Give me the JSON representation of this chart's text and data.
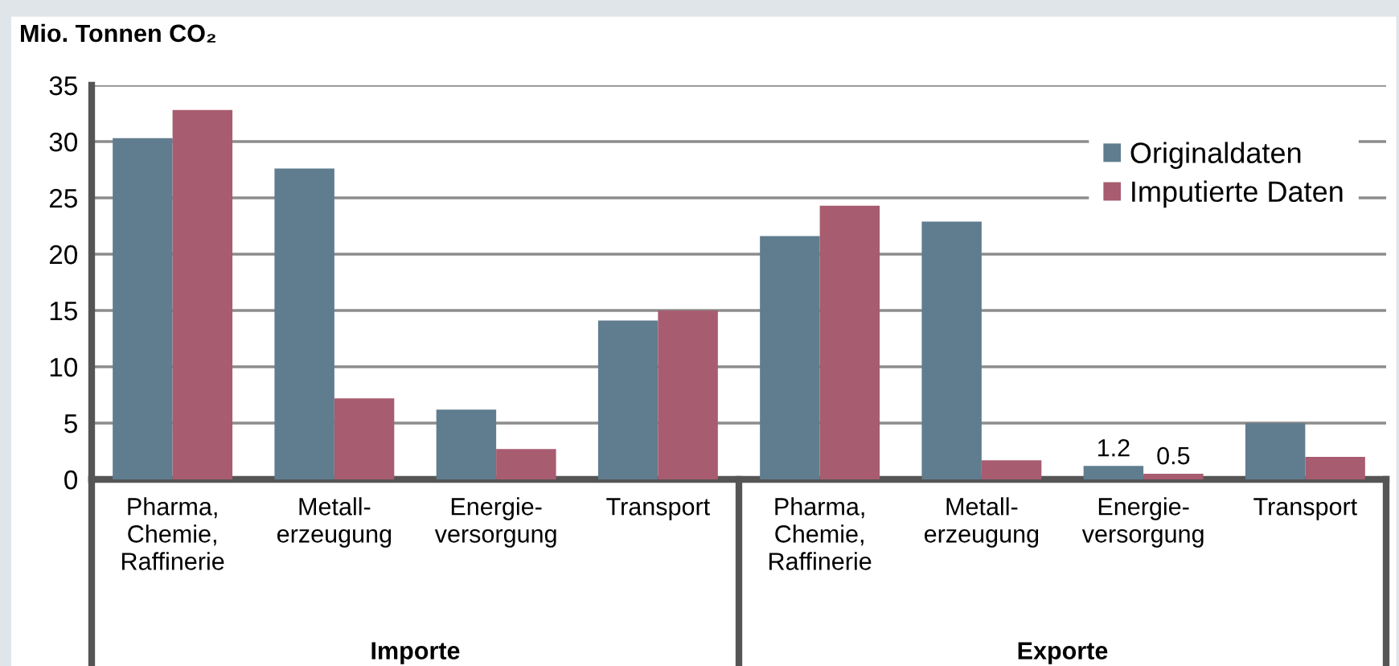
{
  "chart_data": {
    "type": "bar",
    "ylabel": "Mio. Tonnen CO₂",
    "categories": [
      "Pharma,\nChemie,\nRaffinerie",
      "Metall-\nerzeugung",
      "Energie-\nversorgung",
      "Transport",
      "Pharma,\nChemie,\nRaffinerie",
      "Metall-\nerzeugung",
      "Energie-\nversorgung",
      "Transport"
    ],
    "series": [
      {
        "name": "Originaldaten",
        "color": "#607d8f",
        "values": [
          30.3,
          27.6,
          6.2,
          14.1,
          21.6,
          22.9,
          1.2,
          5.0
        ],
        "value_labels": [
          null,
          null,
          null,
          null,
          null,
          null,
          "1.2",
          null
        ]
      },
      {
        "name": "Imputierte Daten",
        "color": "#a85c70",
        "values": [
          32.8,
          7.2,
          2.7,
          15.0,
          24.3,
          1.7,
          0.5,
          2.0
        ],
        "value_labels": [
          null,
          null,
          null,
          null,
          null,
          null,
          "0.5",
          null
        ]
      }
    ],
    "annotations": [
      "Importe",
      "Exporte"
    ],
    "ylim": [
      0,
      35
    ],
    "yticks": [
      0,
      5,
      10,
      15,
      20,
      25,
      30,
      35
    ],
    "grid": "y",
    "legend": "top right"
  }
}
